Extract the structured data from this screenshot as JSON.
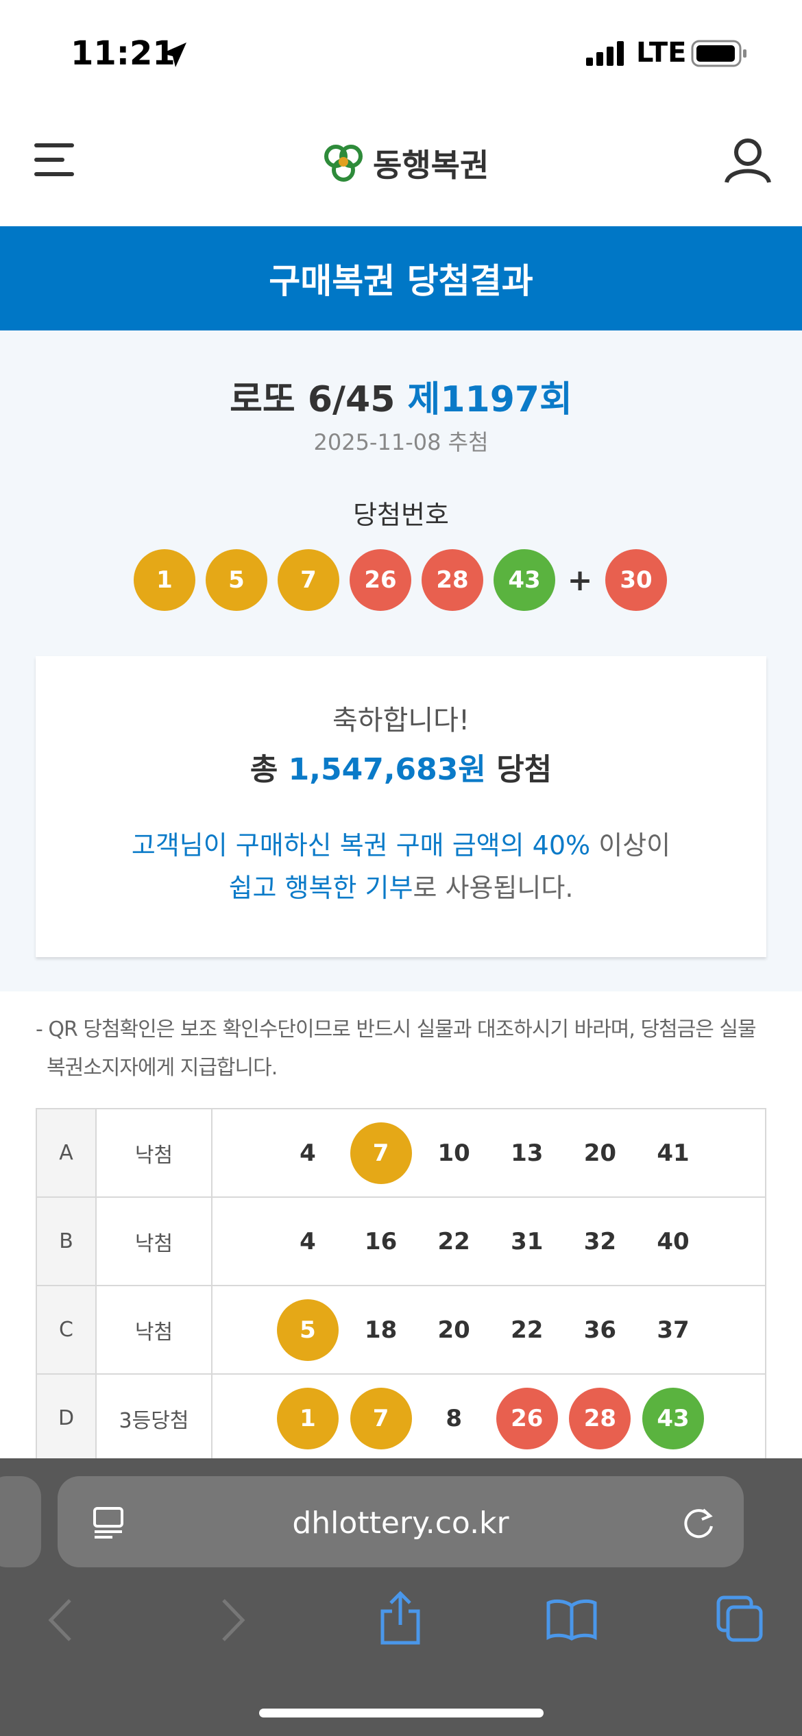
{
  "status_bar": {
    "time": "11:21",
    "network": "LTE"
  },
  "header": {
    "logo": "동행복권"
  },
  "banner": {
    "title": "구매복권 당첨결과"
  },
  "draw": {
    "game": "로또 6/45",
    "round": "제1197회",
    "date": "2025-11-08 추첨",
    "numbers_label": "당첨번호",
    "numbers": [
      1,
      5,
      7,
      26,
      28,
      43
    ],
    "bonus_sign": "+",
    "bonus": 30
  },
  "result": {
    "greeting": "축하합니다!",
    "prize_prefix": "총",
    "prize_amount": "1,547,683원",
    "prize_suffix": "당첨",
    "donation_line1_highlight": "고객님이 구매하신 복권 구매 금액의 40%",
    "donation_line1_rest": "이상이",
    "donation_line2_highlight": "쉽고 행복한 기부",
    "donation_line2_rest": "로 사용됩니다."
  },
  "notice": "- QR 당첨확인은 보조 확인수단이므로 반드시 실물과 대조하시기 바라며, 당첨금은 실물 복권소지자에게 지급합니다.",
  "table": {
    "rows": [
      {
        "slot": "A",
        "result": "낙첨",
        "numbers": [
          4,
          7,
          10,
          13,
          20,
          41
        ]
      },
      {
        "slot": "B",
        "result": "낙첨",
        "numbers": [
          4,
          16,
          22,
          31,
          32,
          40
        ]
      },
      {
        "slot": "C",
        "result": "낙첨",
        "numbers": [
          5,
          18,
          20,
          22,
          36,
          37
        ]
      },
      {
        "slot": "D",
        "result": "3등당첨",
        "numbers": [
          1,
          7,
          8,
          26,
          28,
          43
        ]
      }
    ]
  },
  "browser": {
    "url": "dhlottery.co.kr"
  }
}
